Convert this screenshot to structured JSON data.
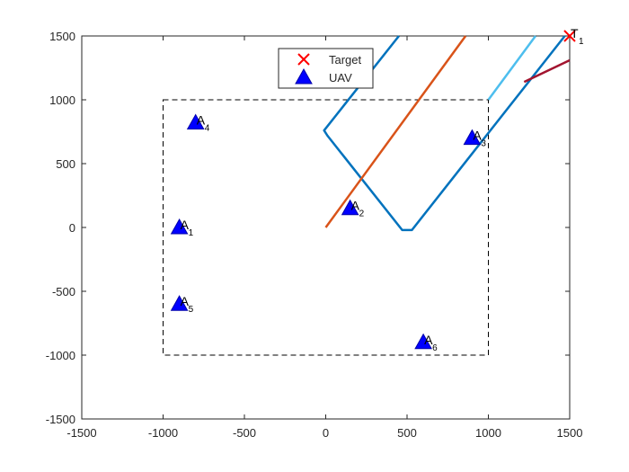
{
  "chart_data": {
    "type": "scatter",
    "xlim": [
      -1500,
      1500
    ],
    "ylim": [
      -1500,
      1500
    ],
    "xticks": [
      -1500,
      -1000,
      -500,
      0,
      500,
      1000,
      1500
    ],
    "yticks": [
      -1500,
      -1000,
      -500,
      0,
      500,
      1000,
      1500
    ],
    "grid": false,
    "legend": "top",
    "region": {
      "x": [
        -1000,
        1000
      ],
      "y": [
        -1000,
        1000
      ],
      "color": "#000000"
    },
    "series": [
      {
        "name": "Target",
        "color": "#ff0000",
        "marker": "x",
        "x": [
          1500
        ],
        "y": [
          1500
        ],
        "labels": [
          {
            "text": "T",
            "sub": "1"
          }
        ]
      },
      {
        "name": "UAV",
        "color": "#0000ff",
        "marker": "triangle",
        "x": [
          -900,
          150,
          900,
          -800,
          -900,
          600
        ],
        "y": [
          0,
          150,
          700,
          820,
          -600,
          -900
        ],
        "labels": [
          {
            "text": "A",
            "sub": "1"
          },
          {
            "text": "A",
            "sub": "2"
          },
          {
            "text": "A",
            "sub": "3"
          },
          {
            "text": "A",
            "sub": "4"
          },
          {
            "text": "A",
            "sub": "5"
          },
          {
            "text": "A",
            "sub": "6"
          }
        ]
      }
    ],
    "paths": [
      {
        "color": "#0072bd",
        "x": [
          450,
          -10,
          10,
          470,
          530,
          1470
        ],
        "y": [
          1500,
          760,
          720,
          -20,
          -20,
          1500
        ]
      },
      {
        "color": "#d95319",
        "x": [
          0,
          860
        ],
        "y": [
          0,
          1500
        ]
      },
      {
        "color": "#4dbeee",
        "x": [
          1000,
          1290
        ],
        "y": [
          1000,
          1500
        ]
      },
      {
        "color": "#a2142f",
        "x": [
          1220,
          1500
        ],
        "y": [
          1140,
          1310
        ]
      }
    ]
  }
}
